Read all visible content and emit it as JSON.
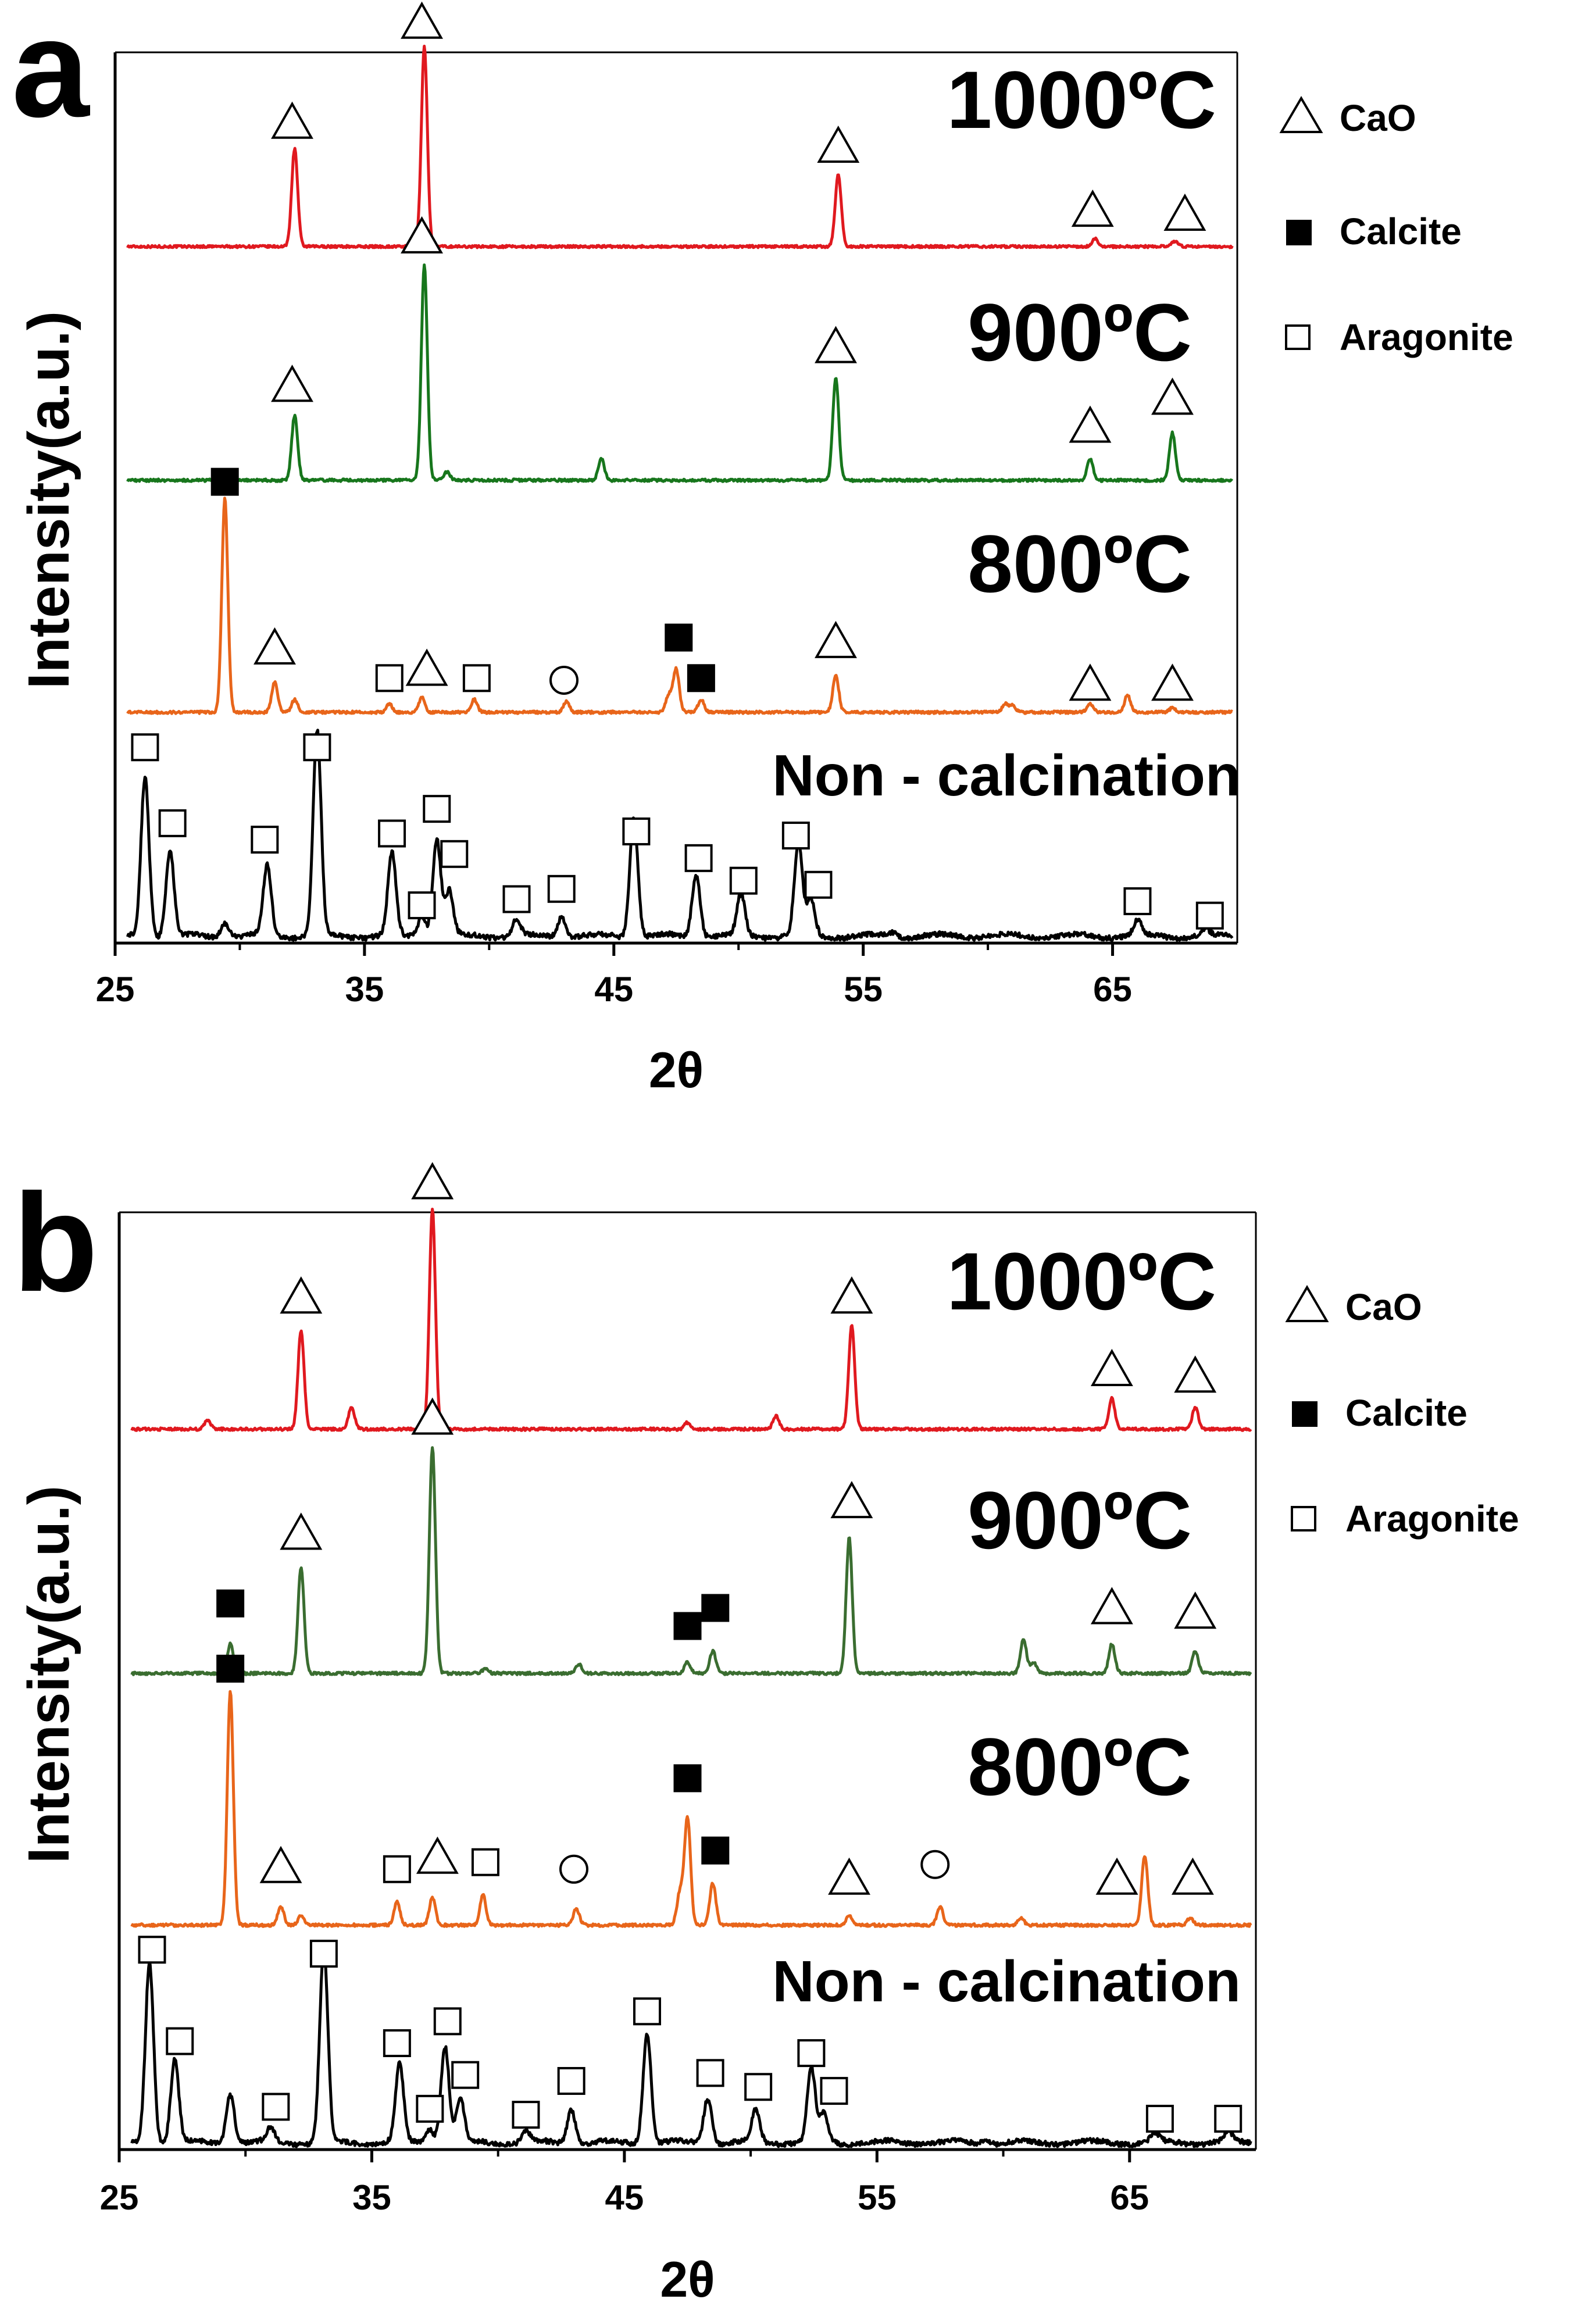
{
  "legend_labels": {
    "cao": "CaO",
    "calcite": "Calcite",
    "aragonite": "Aragonite"
  },
  "colors": {
    "1000": "#e0191f",
    "900": "#17761c",
    "800": "#e8651a",
    "raw": "#000000"
  },
  "chart_data": [
    {
      "type": "line",
      "panel_label": "a",
      "xlabel": "2θ",
      "ylabel": "Intensity(a.u.)",
      "xlim": [
        25,
        70
      ],
      "x_ticks": [
        "25",
        "35",
        "45",
        "55",
        "65"
      ],
      "x_tick_values": [
        25,
        35,
        45,
        55,
        65
      ],
      "legend": [
        "CaO",
        "Calcite",
        "Aragonite"
      ],
      "series": [
        {
          "name": "1000ºC",
          "color": "#e0191f",
          "baseline": 0.5,
          "height": 1.0,
          "peaks": [
            [
              32.2,
              0.49
            ],
            [
              37.4,
              1.0
            ],
            [
              54.0,
              0.36
            ],
            [
              64.3,
              0.04
            ],
            [
              67.5,
              0.025
            ]
          ],
          "markers": [
            {
              "x": 32.1,
              "y": 0.62,
              "symbol": "triangle"
            },
            {
              "x": 37.3,
              "y": 1.12,
              "symbol": "triangle"
            },
            {
              "x": 54.0,
              "y": 0.5,
              "symbol": "triangle"
            },
            {
              "x": 64.2,
              "y": 0.18,
              "symbol": "triangle"
            },
            {
              "x": 67.9,
              "y": 0.16,
              "symbol": "triangle"
            }
          ]
        },
        {
          "name": "900ºC",
          "color": "#17761c",
          "baseline": 0.5,
          "height": 1.0,
          "peaks": [
            [
              32.2,
              0.3
            ],
            [
              37.4,
              1.0
            ],
            [
              38.3,
              0.04
            ],
            [
              44.5,
              0.1
            ],
            [
              53.9,
              0.48
            ],
            [
              64.1,
              0.1
            ],
            [
              67.4,
              0.22
            ]
          ],
          "markers": [
            {
              "x": 32.1,
              "y": 0.44,
              "symbol": "triangle"
            },
            {
              "x": 37.3,
              "y": 1.13,
              "symbol": "triangle"
            },
            {
              "x": 53.9,
              "y": 0.62,
              "symbol": "triangle"
            },
            {
              "x": 64.1,
              "y": 0.25,
              "symbol": "triangle"
            },
            {
              "x": 67.4,
              "y": 0.38,
              "symbol": "triangle"
            }
          ]
        },
        {
          "name": "800ºC",
          "color": "#e8651a",
          "baseline": 0.5,
          "height": 1.0,
          "peaks": [
            [
              29.4,
              1.0
            ],
            [
              31.4,
              0.14
            ],
            [
              32.2,
              0.06
            ],
            [
              36.0,
              0.04
            ],
            [
              37.3,
              0.07
            ],
            [
              39.4,
              0.06
            ],
            [
              43.1,
              0.05
            ],
            [
              47.2,
              0.08
            ],
            [
              47.5,
              0.2
            ],
            [
              48.5,
              0.06
            ],
            [
              53.9,
              0.17
            ],
            [
              60.7,
              0.04
            ],
            [
              61.0,
              0.03
            ],
            [
              64.1,
              0.04
            ],
            [
              65.6,
              0.08
            ],
            [
              67.4,
              0.02
            ]
          ],
          "markers": [
            {
              "x": 29.4,
              "y": 1.08,
              "symbol": "filled_square"
            },
            {
              "x": 31.4,
              "y": 0.3,
              "symbol": "triangle"
            },
            {
              "x": 36.0,
              "y": 0.16,
              "symbol": "open_square"
            },
            {
              "x": 37.5,
              "y": 0.2,
              "symbol": "triangle"
            },
            {
              "x": 39.5,
              "y": 0.16,
              "symbol": "open_square"
            },
            {
              "x": 43.0,
              "y": 0.15,
              "symbol": "circle"
            },
            {
              "x": 47.6,
              "y": 0.35,
              "symbol": "filled_square"
            },
            {
              "x": 48.5,
              "y": 0.16,
              "symbol": "filled_square"
            },
            {
              "x": 53.9,
              "y": 0.33,
              "symbol": "triangle"
            },
            {
              "x": 64.1,
              "y": 0.13,
              "symbol": "triangle"
            },
            {
              "x": 67.4,
              "y": 0.13,
              "symbol": "triangle"
            }
          ]
        },
        {
          "name": "Non - calcination",
          "color": "#000000",
          "baseline": 0.5,
          "height": 1.0,
          "peaks": [
            [
              26.2,
              0.78
            ],
            [
              27.2,
              0.42
            ],
            [
              29.4,
              0.07
            ],
            [
              31.1,
              0.34
            ],
            [
              33.1,
              1.0
            ],
            [
              36.1,
              0.4
            ],
            [
              37.3,
              0.1
            ],
            [
              37.9,
              0.48
            ],
            [
              38.4,
              0.22
            ],
            [
              41.1,
              0.08
            ],
            [
              42.9,
              0.1
            ],
            [
              45.8,
              0.59
            ],
            [
              48.3,
              0.31
            ],
            [
              50.1,
              0.2
            ],
            [
              52.4,
              0.45
            ],
            [
              52.9,
              0.18
            ],
            [
              56.2,
              0.02
            ],
            [
              66.0,
              0.07
            ],
            [
              68.7,
              0.03
            ]
          ],
          "markers": [
            {
              "x": 26.2,
              "y": 0.92,
              "symbol": "open_square"
            },
            {
              "x": 27.3,
              "y": 0.55,
              "symbol": "open_square"
            },
            {
              "x": 31.0,
              "y": 0.47,
              "symbol": "open_square"
            },
            {
              "x": 33.1,
              "y": 0.92,
              "symbol": "open_square"
            },
            {
              "x": 36.1,
              "y": 0.5,
              "symbol": "open_square"
            },
            {
              "x": 37.3,
              "y": 0.15,
              "symbol": "open_square"
            },
            {
              "x": 37.9,
              "y": 0.62,
              "symbol": "open_square"
            },
            {
              "x": 38.6,
              "y": 0.4,
              "symbol": "open_square"
            },
            {
              "x": 41.1,
              "y": 0.18,
              "symbol": "open_square"
            },
            {
              "x": 42.9,
              "y": 0.23,
              "symbol": "open_square"
            },
            {
              "x": 45.9,
              "y": 0.51,
              "symbol": "open_square"
            },
            {
              "x": 48.4,
              "y": 0.38,
              "symbol": "open_square"
            },
            {
              "x": 50.2,
              "y": 0.27,
              "symbol": "open_square"
            },
            {
              "x": 52.3,
              "y": 0.49,
              "symbol": "open_square"
            },
            {
              "x": 53.2,
              "y": 0.25,
              "symbol": "open_square"
            },
            {
              "x": 66.0,
              "y": 0.17,
              "symbol": "open_square"
            },
            {
              "x": 68.9,
              "y": 0.1,
              "symbol": "open_square"
            }
          ]
        }
      ]
    },
    {
      "type": "line",
      "panel_label": "b",
      "xlabel": "2θ",
      "ylabel": "Intensity(a.u.)",
      "xlim": [
        25,
        70
      ],
      "x_ticks": [
        "25",
        "35",
        "45",
        "55",
        "65"
      ],
      "x_tick_values": [
        25,
        35,
        45,
        55,
        65
      ],
      "legend": [
        "CaO",
        "Calcite",
        "Aragonite"
      ],
      "series": [
        {
          "name": "1000ºC",
          "color": "#e0191f",
          "baseline": 0.5,
          "height": 1.0,
          "peaks": [
            [
              28.5,
              0.04
            ],
            [
              32.2,
              0.45
            ],
            [
              34.2,
              0.1
            ],
            [
              37.4,
              1.0
            ],
            [
              47.5,
              0.03
            ],
            [
              51.0,
              0.06
            ],
            [
              54.0,
              0.47
            ],
            [
              64.3,
              0.14
            ],
            [
              67.6,
              0.1
            ]
          ],
          "markers": [
            {
              "x": 32.2,
              "y": 0.6,
              "symbol": "triangle"
            },
            {
              "x": 37.4,
              "y": 1.12,
              "symbol": "triangle"
            },
            {
              "x": 54.0,
              "y": 0.6,
              "symbol": "triangle"
            },
            {
              "x": 64.3,
              "y": 0.27,
              "symbol": "triangle"
            },
            {
              "x": 67.6,
              "y": 0.24,
              "symbol": "triangle"
            }
          ]
        },
        {
          "name": "900ºC",
          "color": "#3a6d30",
          "baseline": 0.5,
          "height": 1.0,
          "peaks": [
            [
              29.4,
              0.13
            ],
            [
              32.2,
              0.47
            ],
            [
              37.4,
              1.0
            ],
            [
              39.5,
              0.02
            ],
            [
              43.2,
              0.04
            ],
            [
              47.5,
              0.05
            ],
            [
              48.5,
              0.1
            ],
            [
              53.9,
              0.6
            ],
            [
              60.8,
              0.15
            ],
            [
              61.2,
              0.05
            ],
            [
              64.3,
              0.13
            ],
            [
              67.6,
              0.1
            ]
          ],
          "markers": [
            {
              "x": 29.4,
              "y": 0.31,
              "symbol": "filled_square"
            },
            {
              "x": 32.2,
              "y": 0.62,
              "symbol": "triangle"
            },
            {
              "x": 37.4,
              "y": 1.13,
              "symbol": "triangle"
            },
            {
              "x": 47.5,
              "y": 0.21,
              "symbol": "filled_square"
            },
            {
              "x": 48.6,
              "y": 0.29,
              "symbol": "filled_square"
            },
            {
              "x": 54.0,
              "y": 0.76,
              "symbol": "triangle"
            },
            {
              "x": 64.3,
              "y": 0.29,
              "symbol": "triangle"
            },
            {
              "x": 67.6,
              "y": 0.27,
              "symbol": "triangle"
            }
          ]
        },
        {
          "name": "800ºC",
          "color": "#e8651a",
          "baseline": 0.5,
          "height": 1.0,
          "peaks": [
            [
              29.4,
              1.0
            ],
            [
              31.4,
              0.08
            ],
            [
              32.2,
              0.04
            ],
            [
              36.0,
              0.1
            ],
            [
              37.4,
              0.12
            ],
            [
              39.4,
              0.13
            ],
            [
              43.1,
              0.07
            ],
            [
              47.2,
              0.14
            ],
            [
              47.5,
              0.46
            ],
            [
              48.5,
              0.18
            ],
            [
              53.9,
              0.04
            ],
            [
              57.5,
              0.08
            ],
            [
              60.7,
              0.03
            ],
            [
              65.6,
              0.3
            ],
            [
              67.4,
              0.03
            ]
          ],
          "markers": [
            {
              "x": 29.4,
              "y": 1.1,
              "symbol": "filled_square"
            },
            {
              "x": 31.4,
              "y": 0.25,
              "symbol": "triangle"
            },
            {
              "x": 36.0,
              "y": 0.24,
              "symbol": "open_square"
            },
            {
              "x": 37.6,
              "y": 0.29,
              "symbol": "triangle"
            },
            {
              "x": 39.5,
              "y": 0.27,
              "symbol": "open_square"
            },
            {
              "x": 43.0,
              "y": 0.24,
              "symbol": "circle"
            },
            {
              "x": 47.5,
              "y": 0.63,
              "symbol": "filled_square"
            },
            {
              "x": 48.6,
              "y": 0.32,
              "symbol": "filled_square"
            },
            {
              "x": 53.9,
              "y": 0.2,
              "symbol": "triangle"
            },
            {
              "x": 57.3,
              "y": 0.26,
              "symbol": "circle"
            },
            {
              "x": 64.5,
              "y": 0.2,
              "symbol": "triangle"
            },
            {
              "x": 67.5,
              "y": 0.2,
              "symbol": "triangle"
            }
          ]
        },
        {
          "name": "Non - calcination",
          "color": "#000000",
          "baseline": 0.5,
          "height": 1.0,
          "peaks": [
            [
              26.2,
              0.91
            ],
            [
              27.2,
              0.42
            ],
            [
              29.4,
              0.25
            ],
            [
              31.0,
              0.07
            ],
            [
              33.1,
              0.98
            ],
            [
              36.1,
              0.39
            ],
            [
              37.3,
              0.07
            ],
            [
              37.9,
              0.49
            ],
            [
              38.5,
              0.22
            ],
            [
              41.1,
              0.06
            ],
            [
              42.9,
              0.17
            ],
            [
              45.9,
              0.55
            ],
            [
              48.3,
              0.23
            ],
            [
              50.2,
              0.16
            ],
            [
              52.4,
              0.37
            ],
            [
              52.9,
              0.14
            ],
            [
              59.3,
              0.02
            ],
            [
              66.0,
              0.04
            ],
            [
              68.9,
              0.05
            ]
          ],
          "markers": [
            {
              "x": 26.3,
              "y": 0.97,
              "symbol": "open_square"
            },
            {
              "x": 27.4,
              "y": 0.51,
              "symbol": "open_square"
            },
            {
              "x": 31.2,
              "y": 0.18,
              "symbol": "open_square"
            },
            {
              "x": 33.1,
              "y": 0.95,
              "symbol": "open_square"
            },
            {
              "x": 36.0,
              "y": 0.5,
              "symbol": "open_square"
            },
            {
              "x": 37.3,
              "y": 0.17,
              "symbol": "open_square"
            },
            {
              "x": 38.0,
              "y": 0.61,
              "symbol": "open_square"
            },
            {
              "x": 38.7,
              "y": 0.34,
              "symbol": "open_square"
            },
            {
              "x": 41.1,
              "y": 0.14,
              "symbol": "open_square"
            },
            {
              "x": 42.9,
              "y": 0.31,
              "symbol": "open_square"
            },
            {
              "x": 45.9,
              "y": 0.66,
              "symbol": "open_square"
            },
            {
              "x": 48.4,
              "y": 0.35,
              "symbol": "open_square"
            },
            {
              "x": 50.3,
              "y": 0.28,
              "symbol": "open_square"
            },
            {
              "x": 52.4,
              "y": 0.45,
              "symbol": "open_square"
            },
            {
              "x": 53.3,
              "y": 0.26,
              "symbol": "open_square"
            },
            {
              "x": 66.2,
              "y": 0.12,
              "symbol": "open_square"
            },
            {
              "x": 68.9,
              "y": 0.12,
              "symbol": "open_square"
            }
          ]
        }
      ]
    }
  ]
}
